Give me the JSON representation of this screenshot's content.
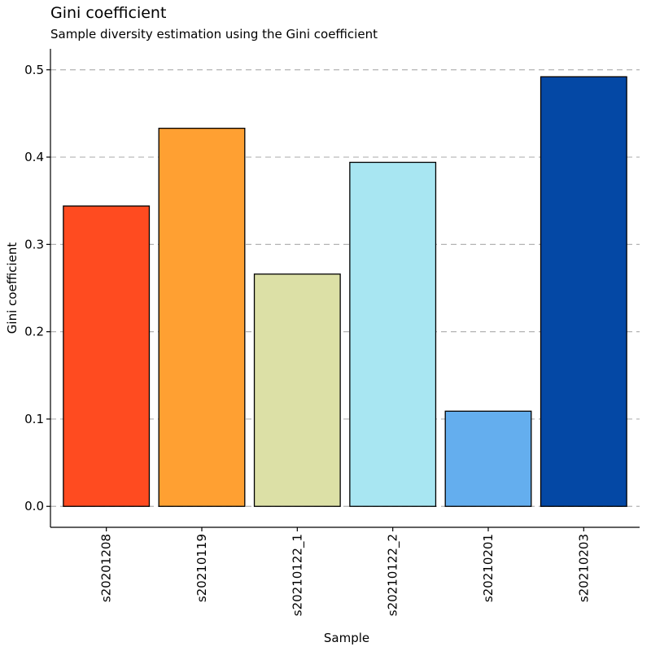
{
  "chart_data": {
    "type": "bar",
    "title": "Gini coefficient",
    "subtitle": "Sample diversity estimation using the Gini coefficient",
    "xlabel": "Sample",
    "ylabel": "Gini coefficient",
    "categories": [
      "s20201208",
      "s20210119",
      "s20210122_1",
      "s20210122_2",
      "s20210201",
      "s20210203"
    ],
    "values": [
      0.344,
      0.433,
      0.266,
      0.394,
      0.109,
      0.492
    ],
    "colors": [
      "#FF4B20",
      "#FFA032",
      "#DCE0A6",
      "#A8E6F2",
      "#64AEEE",
      "#0448A5"
    ],
    "ylim": [
      -0.024,
      0.524
    ],
    "yticks": [
      0.0,
      0.1,
      0.2,
      0.3,
      0.4,
      0.5
    ],
    "ytick_labels": [
      "0.0",
      "0.1",
      "0.2",
      "0.3",
      "0.4",
      "0.5"
    ],
    "grid": "horizontal dashed",
    "legend": "none"
  }
}
